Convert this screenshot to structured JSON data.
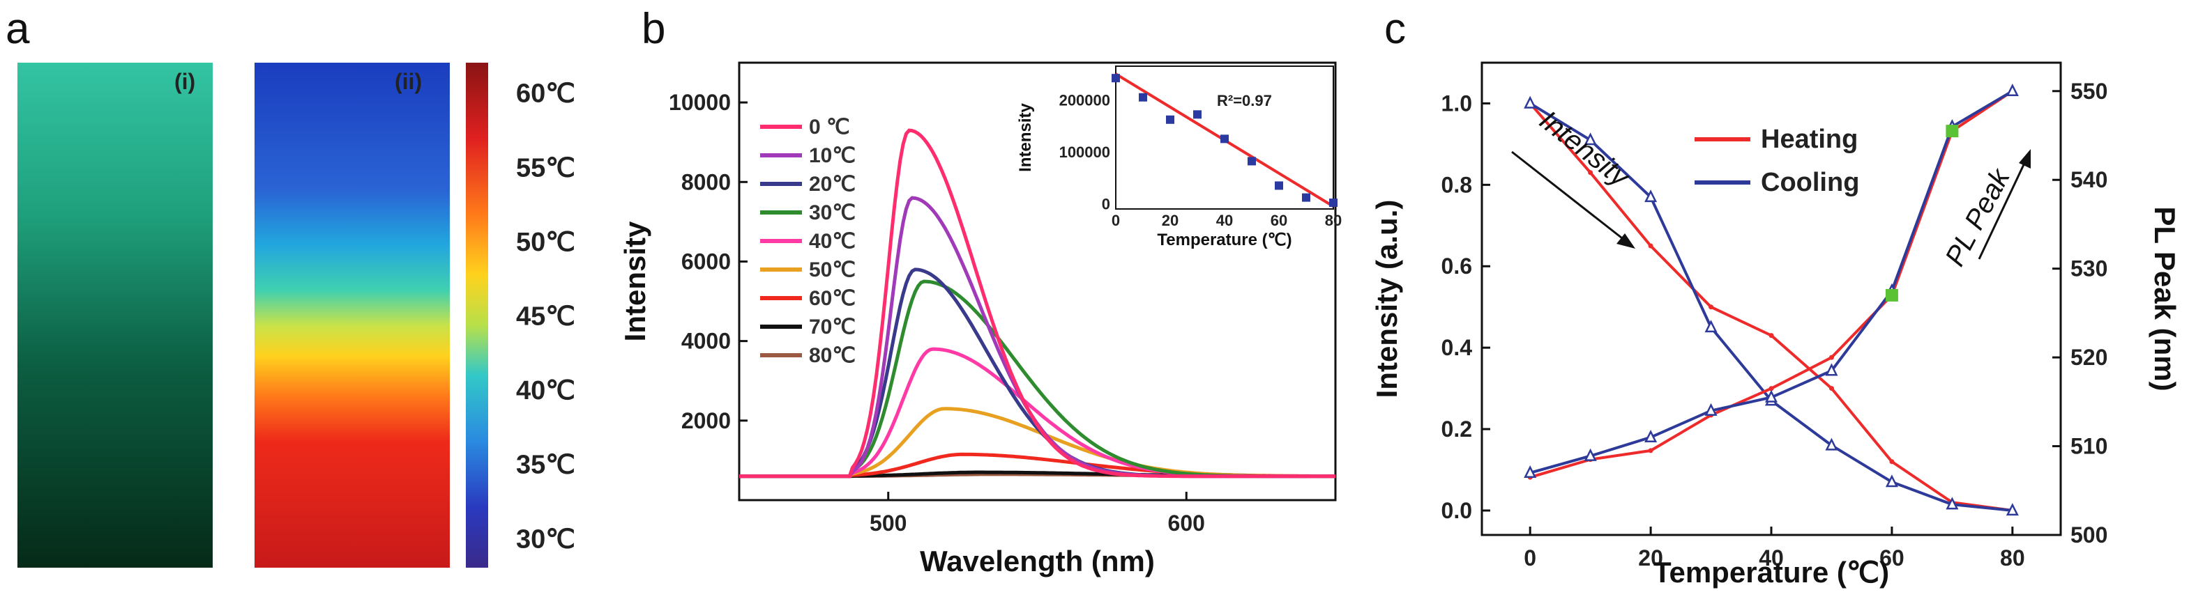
{
  "figure": {
    "panel_a": {
      "letter": "a",
      "label_i": "(i)",
      "label_ii": "(ii)",
      "colorbar_ticks": [
        "60℃",
        "55℃",
        "50℃",
        "45℃",
        "40℃",
        "35℃",
        "30℃"
      ],
      "colorbar_values": [
        60,
        55,
        50,
        45,
        40,
        35,
        30
      ]
    },
    "panel_b": {
      "letter": "b"
    },
    "panel_c": {
      "letter": "c"
    }
  },
  "chart_data": [
    {
      "id": "b_main",
      "type": "line",
      "title": "",
      "xlabel": "Wavelength (nm)",
      "ylabel": "Intensity",
      "xlim": [
        450,
        650
      ],
      "ylim": [
        0,
        11000
      ],
      "xticks": [
        500,
        600
      ],
      "yticks": [
        2000,
        4000,
        6000,
        8000,
        10000
      ],
      "baseline": 600,
      "series": [
        {
          "name": "0 ℃",
          "color": "#ff2d6e",
          "peak_x": 507,
          "peak_y": 9300,
          "width_left": 7,
          "width_right": 22
        },
        {
          "name": "10℃",
          "color": "#a03ab8",
          "peak_x": 508,
          "peak_y": 7600,
          "width_left": 7,
          "width_right": 23
        },
        {
          "name": "20℃",
          "color": "#3a3a8c",
          "peak_x": 509,
          "peak_y": 5800,
          "width_left": 8,
          "width_right": 24
        },
        {
          "name": "30℃",
          "color": "#2e8b2e",
          "peak_x": 512,
          "peak_y": 5500,
          "width_left": 9,
          "width_right": 30
        },
        {
          "name": "40℃",
          "color": "#ff3aa6",
          "peak_x": 515,
          "peak_y": 3800,
          "width_left": 10,
          "width_right": 30
        },
        {
          "name": "50℃",
          "color": "#e8a020",
          "peak_x": 519,
          "peak_y": 2300,
          "width_left": 12,
          "width_right": 34
        },
        {
          "name": "60℃",
          "color": "#f0281e",
          "peak_x": 525,
          "peak_y": 1150,
          "width_left": 15,
          "width_right": 38
        },
        {
          "name": "70℃",
          "color": "#111111",
          "peak_x": 530,
          "peak_y": 700,
          "width_left": 18,
          "width_right": 40
        },
        {
          "name": "80℃",
          "color": "#9a5a42",
          "peak_x": 535,
          "peak_y": 650,
          "width_left": 20,
          "width_right": 40
        }
      ]
    },
    {
      "id": "b_inset",
      "type": "scatter",
      "title": "",
      "xlabel": "Temperature (℃)",
      "ylabel": "Intensity",
      "xlim": [
        0,
        80
      ],
      "ylim": [
        -10000,
        265000
      ],
      "xticks": [
        0,
        20,
        40,
        60,
        80
      ],
      "yticks": [
        0,
        100000,
        200000
      ],
      "annotation": "R²=0.97",
      "points": [
        {
          "x": 0,
          "y": 242000
        },
        {
          "x": 10,
          "y": 205000
        },
        {
          "x": 20,
          "y": 162000
        },
        {
          "x": 30,
          "y": 172000
        },
        {
          "x": 40,
          "y": 125000
        },
        {
          "x": 50,
          "y": 82000
        },
        {
          "x": 60,
          "y": 35000
        },
        {
          "x": 70,
          "y": 12000
        },
        {
          "x": 80,
          "y": 2000
        }
      ],
      "fit": {
        "x": [
          0,
          80
        ],
        "y": [
          250000,
          -5000
        ]
      }
    },
    {
      "id": "c",
      "type": "line",
      "title": "",
      "xlabel": "Temperature (℃)",
      "ylabel": "Intensity (a.u.)",
      "y2label": "PL Peak (nm)",
      "xlim": [
        -8,
        88
      ],
      "ylim": [
        -0.06,
        1.1
      ],
      "y2lim": [
        500,
        553.2
      ],
      "xticks": [
        0,
        20,
        40,
        60,
        80
      ],
      "yticks": [
        0.0,
        0.2,
        0.4,
        0.6,
        0.8,
        1.0
      ],
      "y2ticks": [
        500,
        510,
        520,
        530,
        540,
        550
      ],
      "x": [
        0,
        10,
        20,
        30,
        40,
        50,
        60,
        70,
        80
      ],
      "annotations": [
        "Intensity",
        "PL Peak"
      ],
      "series": [
        {
          "name": "Heating",
          "axis": "left",
          "color": "#ee2a2a",
          "values": [
            1.0,
            0.83,
            0.65,
            0.5,
            0.43,
            0.3,
            0.12,
            0.02,
            0.0
          ]
        },
        {
          "name": "Cooling",
          "axis": "left",
          "color": "#2d3a9a",
          "values": [
            1.0,
            0.91,
            0.77,
            0.45,
            0.27,
            0.16,
            0.07,
            0.015,
            0.0
          ]
        },
        {
          "name": "Heating",
          "axis": "right",
          "color": "#ee2a2a",
          "values": [
            506.5,
            508.5,
            509.5,
            513.5,
            516.5,
            520.0,
            527.0,
            545.5,
            550.0
          ]
        },
        {
          "name": "Cooling",
          "axis": "right",
          "color": "#2d3a9a",
          "values": [
            507.0,
            508.9,
            511.0,
            514.0,
            515.5,
            518.5,
            527.5,
            546.0,
            550.0
          ]
        }
      ],
      "highlight_points": [
        {
          "x": 60,
          "y2": 527.0
        },
        {
          "x": 70,
          "y2": 545.5
        }
      ],
      "highlight_color": "#5bc236"
    }
  ]
}
